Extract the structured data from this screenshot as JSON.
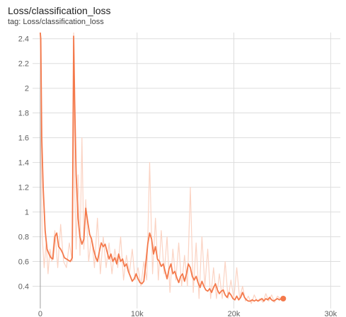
{
  "card": {
    "title": "Loss/classification_loss",
    "tag": "tag: Loss/classification_loss"
  },
  "colors": {
    "smoothed": "#f4794b",
    "raw": "#fbd3c3",
    "grid": "#dddddd",
    "axis": "#9e9e9e"
  },
  "chart_data": {
    "type": "line",
    "title": "Loss/classification_loss",
    "xlabel": "",
    "ylabel": "",
    "xlim": [
      -800,
      31000
    ],
    "ylim": [
      0.22,
      2.45
    ],
    "x_ticks": [
      0,
      10000,
      20000,
      30000
    ],
    "x_tick_labels": [
      "0",
      "10k",
      "20k",
      "30k"
    ],
    "y_ticks": [
      0.4,
      0.6,
      0.8,
      1,
      1.2,
      1.4,
      1.6,
      1.8,
      2,
      2.2,
      2.4
    ],
    "y_tick_labels": [
      "0.4",
      "0.6",
      "0.8",
      "1",
      "1.2",
      "1.4",
      "1.6",
      "1.8",
      "2",
      "2.2",
      "2.4"
    ],
    "grid": true,
    "series": [
      {
        "role": "raw",
        "x": [
          0,
          100,
          200,
          400,
          600,
          800,
          1000,
          1200,
          1500,
          1800,
          2100,
          2400,
          2700,
          3000,
          3300,
          3450,
          3550,
          3700,
          3900,
          4100,
          4300,
          4500,
          4700,
          5000,
          5300,
          5600,
          5900,
          6200,
          6500,
          6800,
          7100,
          7400,
          7700,
          8000,
          8300,
          8600,
          8900,
          9200,
          9500,
          9800,
          10100,
          10400,
          10700,
          11000,
          11300,
          11600,
          11900,
          12200,
          12500,
          12800,
          13100,
          13400,
          13700,
          14000,
          14300,
          14600,
          14900,
          15200,
          15500,
          15800,
          16100,
          16400,
          16700,
          17000,
          17300,
          17600,
          17900,
          18200,
          18500,
          18800,
          19100,
          19400,
          19700,
          20000,
          20300,
          20600,
          20900,
          21200,
          21500,
          21800,
          22100,
          22400,
          22700,
          23000,
          23300,
          23600,
          23900,
          24200,
          24500,
          24800,
          25100
        ],
        "y": [
          2.45,
          1.4,
          0.8,
          0.55,
          0.75,
          0.5,
          0.7,
          0.6,
          0.85,
          0.55,
          0.9,
          0.6,
          0.55,
          0.75,
          0.6,
          2.45,
          1.2,
          0.7,
          1.3,
          0.65,
          1.6,
          0.7,
          1.1,
          0.6,
          0.8,
          0.55,
          0.95,
          0.5,
          0.8,
          0.55,
          0.75,
          0.5,
          0.7,
          0.55,
          0.8,
          0.45,
          0.65,
          0.5,
          0.7,
          0.45,
          0.55,
          0.4,
          0.6,
          0.45,
          1.4,
          0.5,
          0.95,
          0.45,
          0.85,
          0.5,
          0.8,
          0.35,
          0.7,
          0.45,
          0.75,
          0.4,
          0.65,
          0.4,
          1.2,
          0.35,
          0.75,
          0.3,
          0.8,
          0.4,
          0.7,
          0.3,
          0.55,
          0.3,
          0.5,
          0.3,
          0.6,
          0.3,
          0.45,
          0.3,
          0.55,
          0.3,
          0.4,
          0.28,
          0.32,
          0.26,
          0.33,
          0.28,
          0.3,
          0.27,
          0.34,
          0.28,
          0.33,
          0.27,
          0.32,
          0.3,
          0.3
        ]
      },
      {
        "role": "smoothed",
        "x": [
          0,
          50,
          150,
          300,
          500,
          700,
          900,
          1100,
          1300,
          1500,
          1700,
          1900,
          2100,
          2300,
          2500,
          2700,
          2900,
          3100,
          3300,
          3450,
          3550,
          3700,
          3900,
          4100,
          4300,
          4500,
          4700,
          4900,
          5100,
          5300,
          5500,
          5700,
          5900,
          6100,
          6300,
          6500,
          6700,
          6900,
          7100,
          7300,
          7500,
          7700,
          7900,
          8100,
          8300,
          8500,
          8700,
          8900,
          9100,
          9300,
          9500,
          9700,
          9900,
          10100,
          10300,
          10500,
          10700,
          10900,
          11100,
          11300,
          11500,
          11700,
          11900,
          12100,
          12300,
          12500,
          12700,
          12900,
          13100,
          13300,
          13500,
          13700,
          13900,
          14100,
          14300,
          14500,
          14700,
          14900,
          15100,
          15300,
          15500,
          15700,
          15900,
          16100,
          16300,
          16500,
          16700,
          16900,
          17100,
          17300,
          17500,
          17700,
          17900,
          18100,
          18300,
          18500,
          18700,
          18900,
          19100,
          19300,
          19500,
          19700,
          19900,
          20100,
          20300,
          20500,
          20700,
          20900,
          21100,
          21300,
          21500,
          21700,
          21900,
          22100,
          22300,
          22500,
          22700,
          22900,
          23100,
          23300,
          23500,
          23700,
          23900,
          24100,
          24300,
          24500,
          24700,
          24900,
          25100
        ],
        "y": [
          2.45,
          2.4,
          1.6,
          1.2,
          0.85,
          0.7,
          0.66,
          0.63,
          0.62,
          0.8,
          0.83,
          0.72,
          0.7,
          0.67,
          0.63,
          0.62,
          0.61,
          0.6,
          0.63,
          2.42,
          1.9,
          1.3,
          0.95,
          0.8,
          0.74,
          0.78,
          1.03,
          0.92,
          0.82,
          0.78,
          0.7,
          0.64,
          0.6,
          0.68,
          0.75,
          0.72,
          0.74,
          0.68,
          0.62,
          0.66,
          0.6,
          0.63,
          0.58,
          0.66,
          0.6,
          0.62,
          0.56,
          0.58,
          0.52,
          0.48,
          0.44,
          0.46,
          0.5,
          0.46,
          0.43,
          0.42,
          0.44,
          0.58,
          0.74,
          0.83,
          0.78,
          0.66,
          0.72,
          0.62,
          0.6,
          0.56,
          0.58,
          0.52,
          0.46,
          0.54,
          0.58,
          0.5,
          0.52,
          0.47,
          0.43,
          0.48,
          0.5,
          0.44,
          0.5,
          0.58,
          0.55,
          0.48,
          0.45,
          0.48,
          0.43,
          0.39,
          0.44,
          0.4,
          0.37,
          0.36,
          0.38,
          0.35,
          0.39,
          0.42,
          0.37,
          0.34,
          0.36,
          0.37,
          0.33,
          0.31,
          0.35,
          0.33,
          0.3,
          0.29,
          0.32,
          0.29,
          0.31,
          0.35,
          0.31,
          0.29,
          0.28,
          0.28,
          0.29,
          0.28,
          0.29,
          0.28,
          0.29,
          0.3,
          0.28,
          0.3,
          0.29,
          0.31,
          0.29,
          0.28,
          0.29,
          0.3,
          0.29,
          0.3,
          0.3
        ]
      }
    ],
    "last_point": {
      "x": 25100,
      "y": 0.3
    }
  }
}
